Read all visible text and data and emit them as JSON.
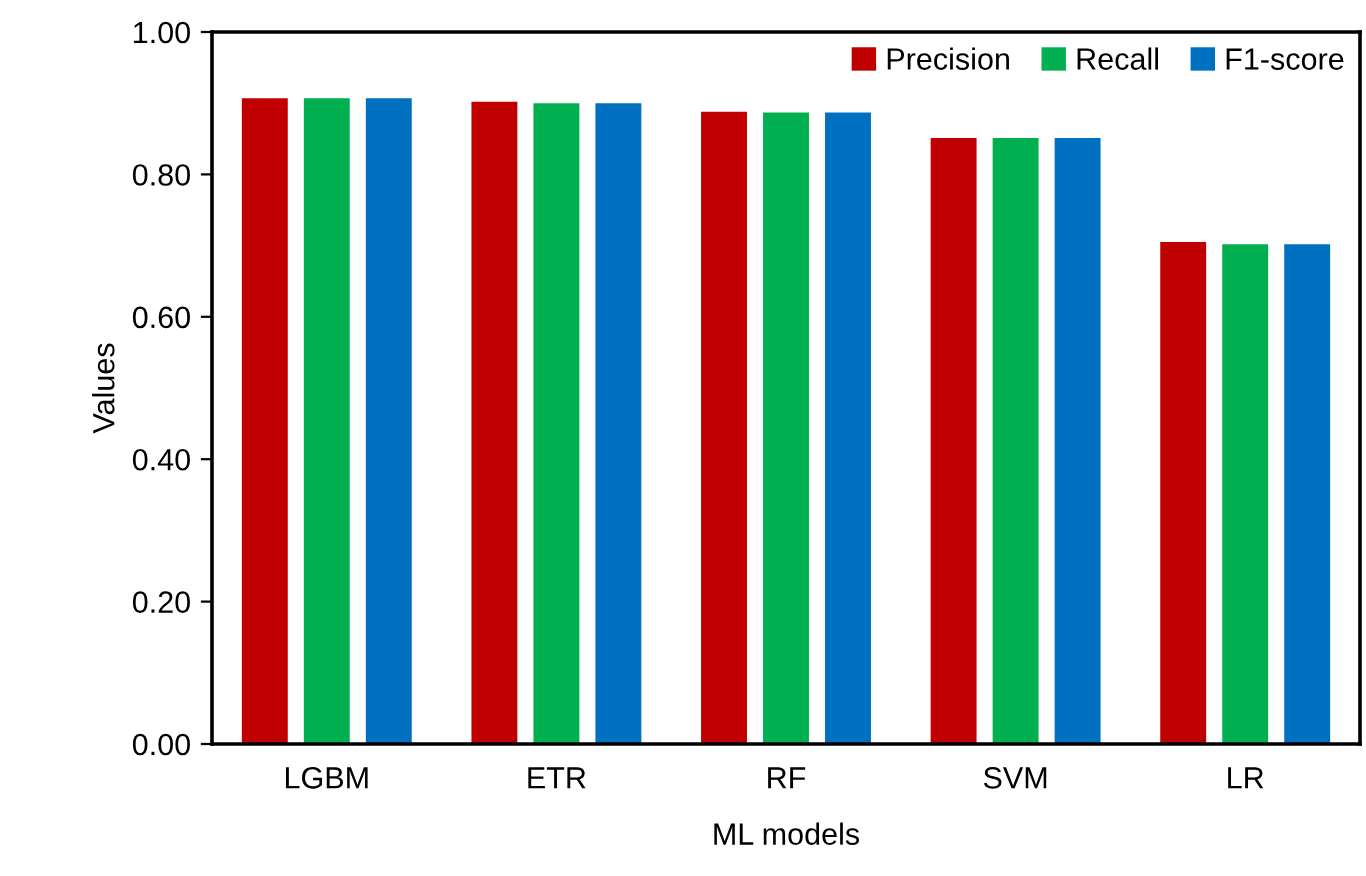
{
  "chart_data": {
    "type": "bar",
    "xlabel": "ML models",
    "ylabel": "Values",
    "categories": [
      "LGBM",
      "ETR",
      "RF",
      "SVM",
      "LR"
    ],
    "series": [
      {
        "name": "Precision",
        "color": "#c00000",
        "values": [
          0.907,
          0.902,
          0.888,
          0.851,
          0.705
        ]
      },
      {
        "name": "Recall",
        "color": "#00b050",
        "values": [
          0.907,
          0.9,
          0.887,
          0.851,
          0.702
        ]
      },
      {
        "name": "F1-score",
        "color": "#0070c0",
        "values": [
          0.907,
          0.9,
          0.887,
          0.851,
          0.702
        ]
      }
    ],
    "ylim": [
      0,
      1
    ],
    "yticks": [
      {
        "value": 0,
        "label": "0.00"
      },
      {
        "value": 0.2,
        "label": "0.20"
      },
      {
        "value": 0.4,
        "label": "0.40"
      },
      {
        "value": 0.6,
        "label": "0.60"
      },
      {
        "value": 0.8,
        "label": "0.80"
      },
      {
        "value": 1,
        "label": "1.00"
      }
    ],
    "grid": false,
    "legend": "top right"
  }
}
